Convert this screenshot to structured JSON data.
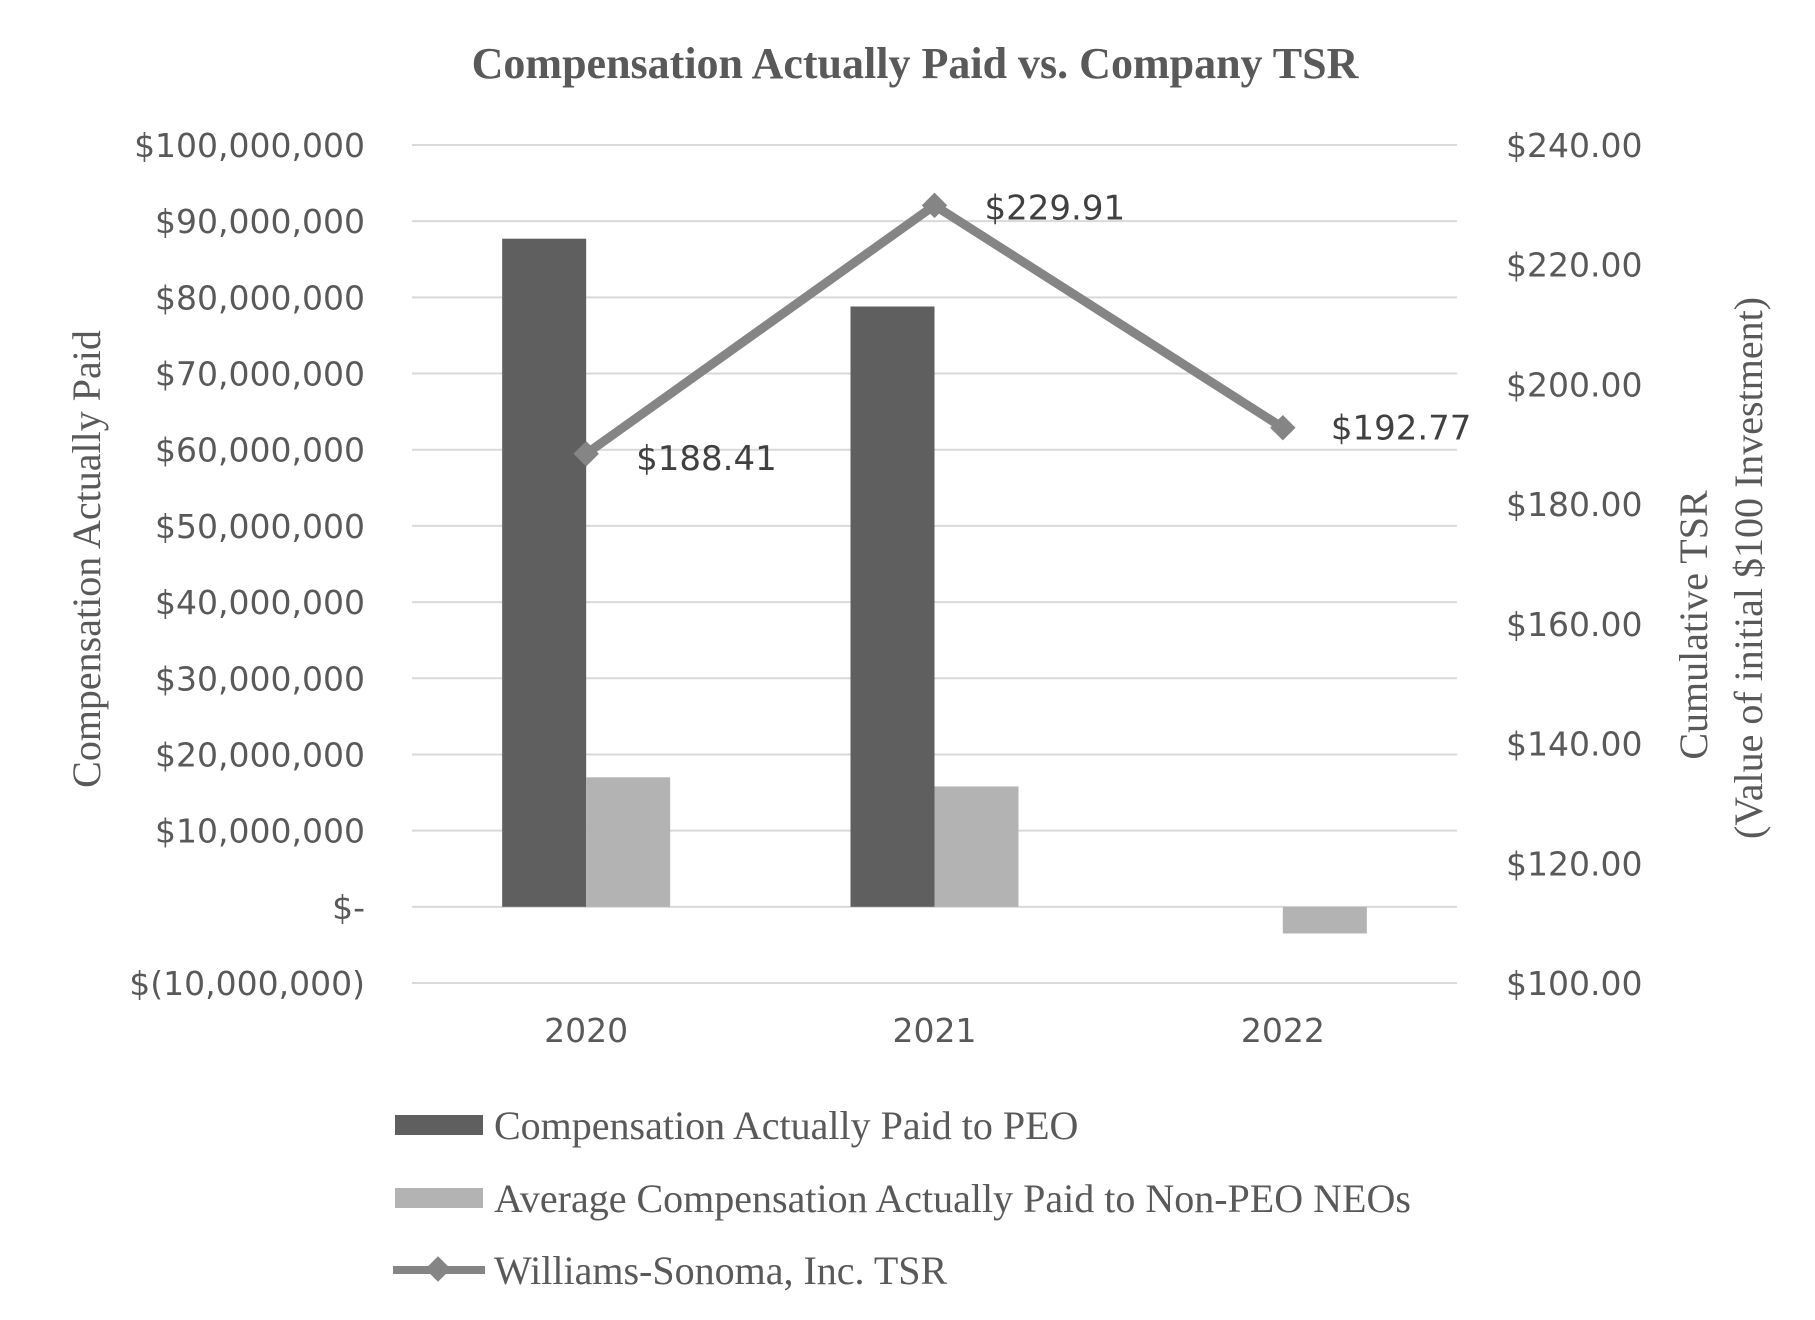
{
  "chart_data": {
    "type": "bar",
    "title": "Compensation Actually Paid vs. Company TSR",
    "categories": [
      "2020",
      "2021",
      "2022"
    ],
    "ylabel": "Compensation Actually Paid",
    "y2label_line1": "Cumulative TSR",
    "y2label_line2": "(Value of initial $100 Investment)",
    "ylim": [
      -10000000,
      100000000
    ],
    "y2lim": [
      100,
      240
    ],
    "grid": true,
    "legend_position": "bottom",
    "y_ticks": [
      {
        "value": 100000000,
        "label": "$100,000,000"
      },
      {
        "value": 90000000,
        "label": "$90,000,000"
      },
      {
        "value": 80000000,
        "label": "$80,000,000"
      },
      {
        "value": 70000000,
        "label": "$70,000,000"
      },
      {
        "value": 60000000,
        "label": "$60,000,000"
      },
      {
        "value": 50000000,
        "label": "$50,000,000"
      },
      {
        "value": 40000000,
        "label": "$40,000,000"
      },
      {
        "value": 30000000,
        "label": "$30,000,000"
      },
      {
        "value": 20000000,
        "label": "$20,000,000"
      },
      {
        "value": 10000000,
        "label": "$10,000,000"
      },
      {
        "value": 0,
        "label": "$-"
      },
      {
        "value": -10000000,
        "label": "$(10,000,000)"
      }
    ],
    "y2_ticks": [
      {
        "value": 240,
        "label": "$240.00"
      },
      {
        "value": 220,
        "label": "$220.00"
      },
      {
        "value": 200,
        "label": "$200.00"
      },
      {
        "value": 180,
        "label": "$180.00"
      },
      {
        "value": 160,
        "label": "$160.00"
      },
      {
        "value": 140,
        "label": "$140.00"
      },
      {
        "value": 120,
        "label": "$120.00"
      },
      {
        "value": 100,
        "label": "$100.00"
      }
    ],
    "series": [
      {
        "name": "Compensation Actually Paid to PEO",
        "kind": "bar",
        "axis": "left",
        "color": "#5f5f5f",
        "values": [
          87700000,
          78800000,
          null
        ]
      },
      {
        "name": "Average Compensation Actually Paid to Non-PEO NEOs",
        "kind": "bar",
        "axis": "left",
        "color": "#b3b3b3",
        "values": [
          17000000,
          15800000,
          -3500000
        ]
      },
      {
        "name": "Williams-Sonoma, Inc. TSR",
        "kind": "line",
        "axis": "right",
        "color": "#858585",
        "values": [
          188.41,
          229.91,
          192.77
        ],
        "labels": [
          "$188.41",
          "$229.91",
          "$192.77"
        ]
      }
    ]
  }
}
